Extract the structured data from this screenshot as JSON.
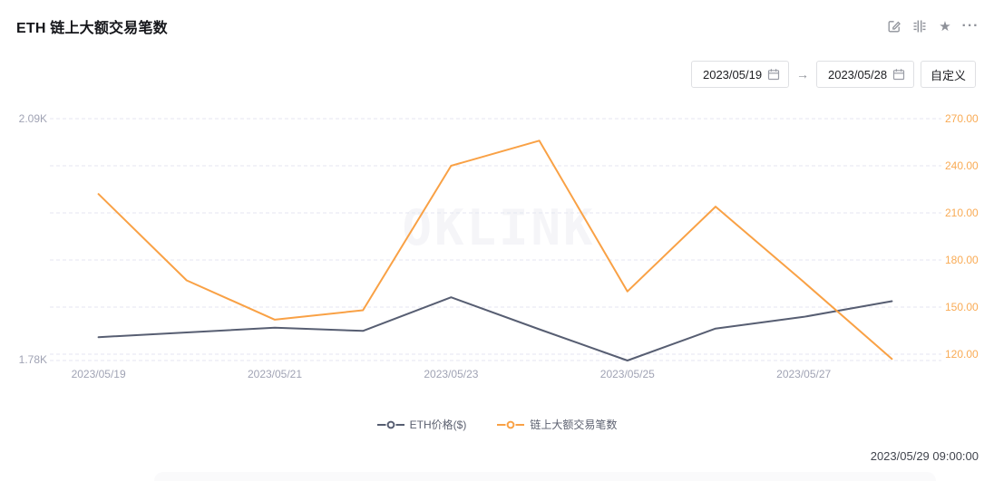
{
  "header": {
    "title": "ETH 链上大额交易笔数"
  },
  "toolbar": {
    "star_glyph": "★",
    "more_glyph": "···",
    "date_start": "2023/05/19",
    "date_end": "2023/05/28",
    "arrow_glyph": "→",
    "custom_button": "自定义"
  },
  "watermark": "OKLINK",
  "footer": {
    "updated_at": "2023/05/29 09:00:00"
  },
  "chart_data": {
    "type": "line",
    "title": "ETH 链上大额交易笔数",
    "x": [
      "2023/05/19",
      "2023/05/20",
      "2023/05/21",
      "2023/05/22",
      "2023/05/23",
      "2023/05/24",
      "2023/05/25",
      "2023/05/26",
      "2023/05/27",
      "2023/05/28"
    ],
    "x_tick_labels": [
      "2023/05/19",
      "2023/05/21",
      "2023/05/23",
      "2023/05/25",
      "2023/05/27"
    ],
    "x_tick_indices": [
      0,
      2,
      4,
      6,
      8
    ],
    "series": [
      {
        "name": "ETH价格($)",
        "axis": "left",
        "color": "#575e72",
        "values": [
          1810,
          1816,
          1822,
          1818,
          1861,
          1820,
          1780,
          1821,
          1836,
          1856
        ]
      },
      {
        "name": "链上大额交易笔数",
        "axis": "right",
        "color": "#f9a145",
        "values": [
          222,
          167,
          142,
          148,
          240,
          256,
          160,
          214,
          166,
          117
        ]
      }
    ],
    "y_left": {
      "min": 1780,
      "max": 2090,
      "labels": [
        "2.09K",
        "1.78K"
      ]
    },
    "y_right": {
      "min": 120,
      "max": 270,
      "tick_labels": [
        "270.00",
        "240.00",
        "210.00",
        "180.00",
        "150.00",
        "120.00"
      ]
    },
    "legend": {
      "position": "bottom",
      "items": [
        "ETH价格($)",
        "链上大额交易笔数"
      ]
    },
    "grid": {
      "horizontal_dashed": true
    }
  }
}
